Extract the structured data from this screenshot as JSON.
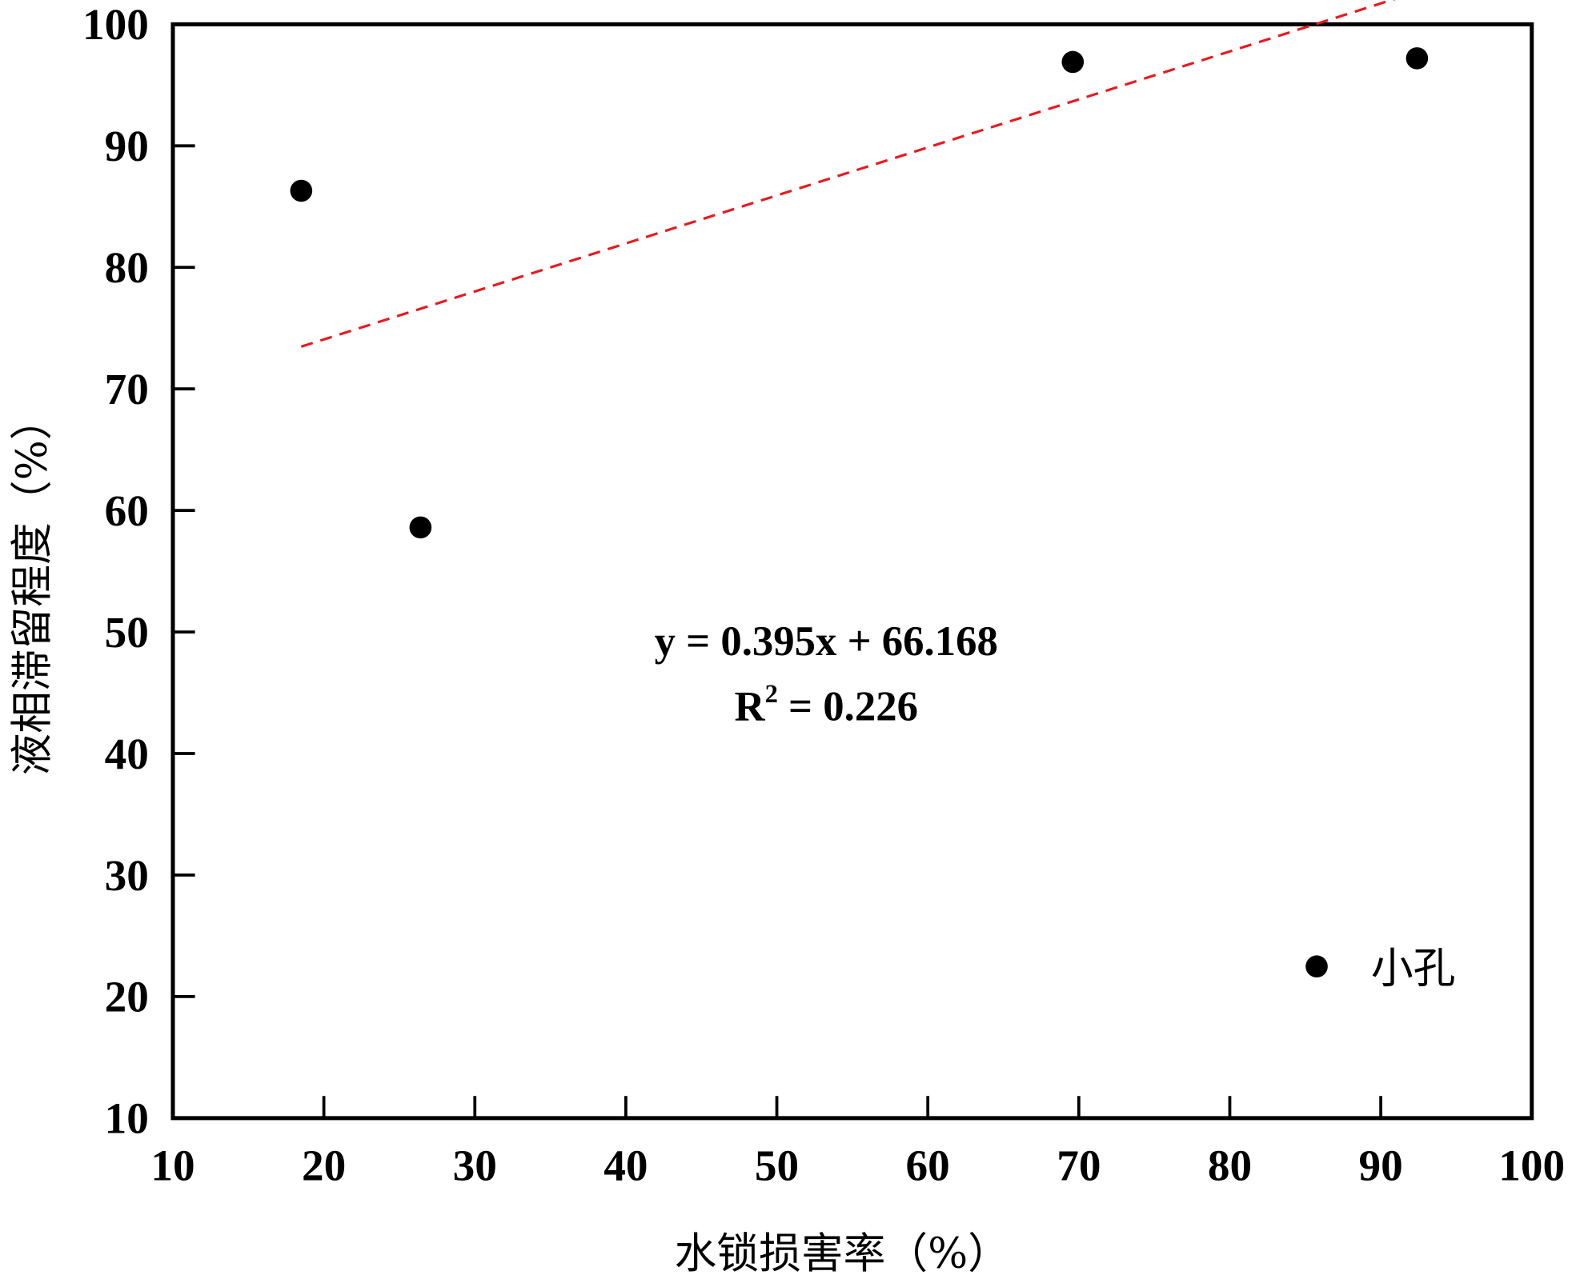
{
  "chart_data": {
    "type": "scatter",
    "xlabel": "水锁损害率（%）",
    "ylabel": "液相滞留程度（%）",
    "xlim": [
      10,
      100
    ],
    "ylim": [
      10,
      100
    ],
    "xticks": [
      "10",
      "20",
      "30",
      "40",
      "50",
      "60",
      "70",
      "80",
      "90",
      "100"
    ],
    "yticks": [
      "10",
      "20",
      "30",
      "40",
      "50",
      "60",
      "70",
      "80",
      "90",
      "100"
    ],
    "grid": false,
    "legend_placement": "bottom-right",
    "series": [
      {
        "name": "小孔",
        "color": "#000000",
        "points": [
          [
            18.5,
            86.3
          ],
          [
            26.4,
            58.6
          ],
          [
            69.6,
            96.9
          ],
          [
            92.4,
            97.2
          ]
        ]
      }
    ],
    "trendline": {
      "color": "#e8191f",
      "style": "dashed",
      "slope": 0.395,
      "intercept": 66.168,
      "x_range": [
        18.5,
        92.4
      ],
      "equation": "y = 0.395x + 66.168",
      "r2_label": "R",
      "r2_sup": "2",
      "r2_value": " = 0.226"
    }
  }
}
